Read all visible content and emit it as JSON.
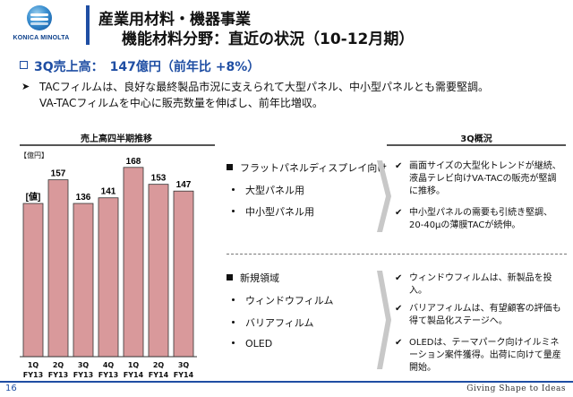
{
  "header": {
    "logo_text": "KONICA MINOLTA",
    "title_line1": "産業用材料・機器事業",
    "title_line2": "機能材料分野：直近の状況（10-12月期）"
  },
  "lead": {
    "headline": "3Q売上高：　147億円（前年比 +8%）",
    "body_line1": "TACフィルムは、良好な最終製品市況に支えられて大型パネル、中小型パネルとも需要堅調。",
    "body_line2": "VA-TACフィルムを中心に販売数量を伸ばし、前年比増収。"
  },
  "chart": {
    "title": "売上高四半期推移",
    "unit": "【億円】",
    "value_label": "[値]"
  },
  "chart_data": {
    "type": "bar",
    "title": "売上高四半期推移",
    "ylabel": "【億円】",
    "categories": [
      "1Q FY13",
      "2Q FY13",
      "3Q FY13",
      "4Q FY13",
      "1Q FY14",
      "2Q FY14",
      "3Q FY14"
    ],
    "quarters": [
      "1Q",
      "2Q",
      "3Q",
      "4Q",
      "1Q",
      "2Q",
      "3Q"
    ],
    "years": [
      "FY13",
      "FY13",
      "FY13",
      "FY13",
      "FY14",
      "FY14",
      "FY14"
    ],
    "value_labels": [
      "[値]",
      "157",
      "136",
      "141",
      "168",
      "153",
      "147"
    ],
    "values": [
      null,
      157,
      136,
      141,
      168,
      153,
      147
    ],
    "bar_color": "#d9999b",
    "bar_stroke": "#333333",
    "ylim": [
      0,
      175
    ],
    "grid": false
  },
  "right": {
    "column_title": "3Q概況",
    "section1": {
      "heading": "フラットパネルディスプレイ向け",
      "items": [
        "大型パネル用",
        "中小型パネル用"
      ],
      "checks": [
        "画面サイズの大型化トレンドが継続、液晶テレビ向けVA-TACの販売が堅調に推移。",
        "中小型パネルの需要も引続き堅調、20-40μの薄膜TACが続伸。"
      ]
    },
    "section2": {
      "heading": "新規領域",
      "items": [
        "ウィンドウフィルム",
        "バリアフィルム",
        "OLED"
      ],
      "checks": [
        "ウィンドウフィルムは、新製品を投入。",
        "バリアフィルムは、有望顧客の評価も得て製品化ステージへ。",
        "OLEDは、テーマパーク向けイルミネーション案件獲得。出荷に向けて量産開始。"
      ]
    }
  },
  "footer": {
    "page_number": "16",
    "tagline": "Giving Shape to Ideas"
  },
  "colors": {
    "accent": "#1f4ea3",
    "bar": "#d9999b"
  }
}
